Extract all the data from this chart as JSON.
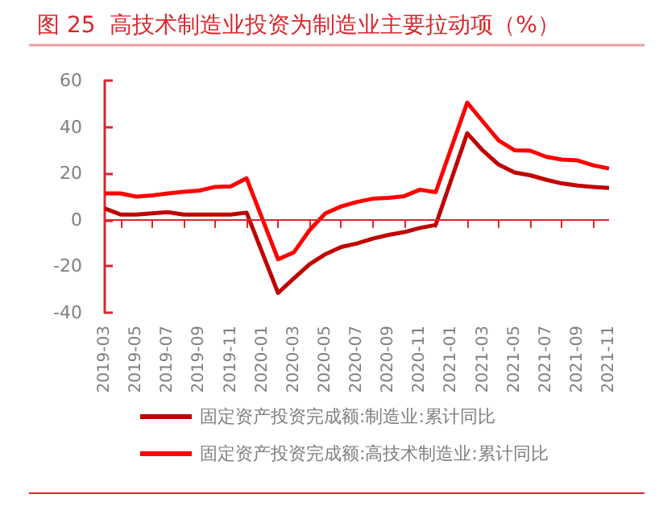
{
  "chart_data": {
    "type": "line",
    "title": "图 25  高技术制造业投资为制造业主要拉动项（%）",
    "categories": [
      "2019-03",
      null,
      "2019-05",
      null,
      "2019-07",
      null,
      "2019-09",
      null,
      "2019-11",
      null,
      "2020-01",
      null,
      "2020-03",
      null,
      "2020-05",
      null,
      "2020-07",
      null,
      "2020-09",
      null,
      "2020-11",
      null,
      "2021-01",
      null,
      "2021-03",
      null,
      "2021-05",
      null,
      "2021-07",
      null,
      "2021-09",
      null,
      "2021-11"
    ],
    "series": [
      {
        "name": "固定资产投资完成额:制造业:累计同比",
        "color": "#c00000",
        "values": [
          4.9,
          2.3,
          2.3,
          2.8,
          3.3,
          2.3,
          2.3,
          2.3,
          2.3,
          3.1,
          null,
          -31.5,
          -25.2,
          -19.1,
          -14.8,
          -11.7,
          -10.2,
          -8.1,
          -6.5,
          -5.3,
          -3.5,
          -2.2,
          null,
          37.3,
          29.8,
          23.8,
          20.4,
          19.2,
          17.3,
          15.7,
          14.8,
          14.2,
          13.7
        ]
      },
      {
        "name": "固定资产投资完成额:高技术制造业:累计同比",
        "color": "#ff0000",
        "values": [
          11.4,
          11.4,
          10.0,
          10.5,
          11.4,
          12.1,
          12.6,
          14.2,
          14.4,
          17.9,
          null,
          -17.0,
          -14.0,
          -4.4,
          2.8,
          5.8,
          7.7,
          9.1,
          9.5,
          10.2,
          13.0,
          11.9,
          null,
          50.5,
          42.3,
          34.2,
          30.0,
          29.8,
          27.2,
          26.0,
          25.6,
          23.5,
          22.1
        ]
      }
    ],
    "ref_lines": [
      {
        "axis": "y",
        "value": 0,
        "color": "#d9262c"
      }
    ],
    "ylim": [
      -40,
      60
    ],
    "yticks": [
      -40,
      -20,
      0,
      20,
      40,
      60
    ],
    "grid": false,
    "legend": "bottom",
    "marker": "none",
    "line_style": "solid"
  }
}
